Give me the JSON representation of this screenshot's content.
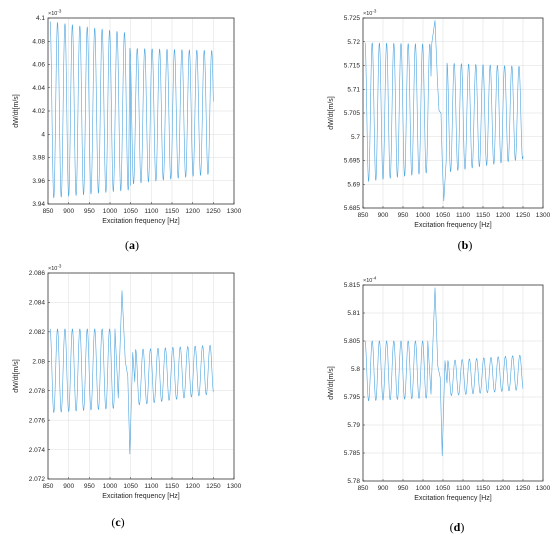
{
  "colors": {
    "series": "#4aa3df",
    "axis": "#262626",
    "grid": "#dcdcdc"
  },
  "chart_data": [
    {
      "id": "a",
      "type": "line",
      "caption_paren_open": "(",
      "caption_letter": "a",
      "caption_paren_close": ")",
      "xlabel": "Excitation frequency [Hz]",
      "ylabel": "dW/dt[m/s]",
      "exponent_base": "×10",
      "exponent_power": "-3",
      "xlim": [
        850,
        1300
      ],
      "ylim": [
        3.94,
        4.1
      ],
      "xticks": [
        "850",
        "900",
        "950",
        "1000",
        "1050",
        "1100",
        "1150",
        "1200",
        "1250",
        "1300"
      ],
      "yticks": [
        "3.94",
        "3.96",
        "3.98",
        "4",
        "4.02",
        "4.04",
        "4.06",
        "4.08",
        "4.1"
      ],
      "grid": true,
      "x_range": [
        855,
        1250
      ],
      "oscillation_period_hz": 18,
      "segments": [
        {
          "x_start": 855,
          "x_end": 1045,
          "max_start": 4.097,
          "max_end": 4.087,
          "min_start": 3.945,
          "min_end": 3.952
        },
        {
          "x_start": 1048,
          "x_end": 1250,
          "max_start": 4.074,
          "max_end": 4.072,
          "min_start": 3.957,
          "min_end": 3.966
        }
      ],
      "features": [
        {
          "x": 1050,
          "y": 3.956
        }
      ]
    },
    {
      "id": "b",
      "type": "line",
      "caption_paren_open": "(",
      "caption_letter": "b",
      "caption_paren_close": ")",
      "xlabel": "Excitation frequency [Hz]",
      "ylabel": "dW/dt[m/s]",
      "exponent_base": "×10",
      "exponent_power": "-3",
      "xlim": [
        850,
        1300
      ],
      "ylim": [
        5.685,
        5.725
      ],
      "xticks": [
        "850",
        "900",
        "950",
        "1000",
        "1050",
        "1100",
        "1150",
        "1200",
        "1250",
        "1300"
      ],
      "yticks": [
        "5.685",
        "5.69",
        "5.695",
        "5.7",
        "5.705",
        "5.71",
        "5.715",
        "5.72",
        "5.725"
      ],
      "grid": true,
      "x_range": [
        855,
        1250
      ],
      "oscillation_period_hz": 18,
      "segments": [
        {
          "x_start": 855,
          "x_end": 1020,
          "max_start": 5.7198,
          "max_end": 5.7195,
          "min_start": 5.6905,
          "min_end": 5.6925
        },
        {
          "x_start": 1060,
          "x_end": 1250,
          "max_start": 5.7155,
          "max_end": 5.7148,
          "min_start": 5.6925,
          "min_end": 5.6953
        }
      ],
      "features": [
        {
          "x": 1022,
          "y": 5.7197
        },
        {
          "x": 1030,
          "y": 5.7245
        },
        {
          "x": 1036,
          "y": 5.712
        },
        {
          "x": 1040,
          "y": 5.7055
        },
        {
          "x": 1045,
          "y": 5.705
        },
        {
          "x": 1048,
          "y": 5.695
        },
        {
          "x": 1052,
          "y": 5.6865
        },
        {
          "x": 1058,
          "y": 5.695
        }
      ]
    },
    {
      "id": "c",
      "type": "line",
      "caption_paren_open": "(",
      "caption_letter": "c",
      "caption_paren_close": ")",
      "xlabel": "Excitation frequency [Hz]",
      "ylabel": "dW/dt[m/s]",
      "exponent_base": "×10",
      "exponent_power": "-3",
      "xlim": [
        850,
        1300
      ],
      "ylim": [
        2.072,
        2.086
      ],
      "xticks": [
        "850",
        "900",
        "950",
        "1000",
        "1050",
        "1100",
        "1150",
        "1200",
        "1250",
        "1300"
      ],
      "yticks": [
        "2.072",
        "2.074",
        "2.076",
        "2.078",
        "2.08",
        "2.082",
        "2.084",
        "2.086"
      ],
      "grid": true,
      "x_range": [
        855,
        1250
      ],
      "oscillation_period_hz": 18,
      "segments": [
        {
          "x_start": 855,
          "x_end": 1010,
          "max_start": 2.0822,
          "max_end": 2.0822,
          "min_start": 2.0765,
          "min_end": 2.0768
        },
        {
          "x_start": 1062,
          "x_end": 1250,
          "max_start": 2.0808,
          "max_end": 2.0811,
          "min_start": 2.077,
          "min_end": 2.0778
        }
      ],
      "features": [
        {
          "x": 1012,
          "y": 2.0822
        },
        {
          "x": 1020,
          "y": 2.0775
        },
        {
          "x": 1029,
          "y": 2.0848
        },
        {
          "x": 1037,
          "y": 2.08
        },
        {
          "x": 1043,
          "y": 2.079
        },
        {
          "x": 1048,
          "y": 2.0737
        },
        {
          "x": 1055,
          "y": 2.0806
        },
        {
          "x": 1060,
          "y": 2.0786
        }
      ]
    },
    {
      "id": "d",
      "type": "line",
      "caption_paren_open": "(",
      "caption_letter": "d",
      "caption_paren_close": ")",
      "xlabel": "Excitation frequency [Hz]",
      "ylabel": "dW/dt[m/s]",
      "exponent_base": "×10",
      "exponent_power": "-4",
      "xlim": [
        850,
        1300
      ],
      "ylim": [
        5.78,
        5.815
      ],
      "xticks": [
        "850",
        "900",
        "950",
        "1000",
        "1050",
        "1100",
        "1150",
        "1200",
        "1250",
        "1300"
      ],
      "yticks": [
        "5.78",
        "5.785",
        "5.79",
        "5.795",
        "5.8",
        "5.805",
        "5.81",
        "5.815"
      ],
      "grid": true,
      "x_range": [
        855,
        1250
      ],
      "oscillation_period_hz": 18,
      "segments": [
        {
          "x_start": 855,
          "x_end": 1010,
          "max_start": 5.805,
          "max_end": 5.805,
          "min_start": 5.7943,
          "min_end": 5.7948
        },
        {
          "x_start": 1062,
          "x_end": 1250,
          "max_start": 5.8015,
          "max_end": 5.8025,
          "min_start": 5.7952,
          "min_end": 5.7963
        }
      ],
      "features": [
        {
          "x": 1012,
          "y": 5.805
        },
        {
          "x": 1020,
          "y": 5.7955
        },
        {
          "x": 1030,
          "y": 5.8145
        },
        {
          "x": 1037,
          "y": 5.8005
        },
        {
          "x": 1043,
          "y": 5.7985
        },
        {
          "x": 1048,
          "y": 5.7845
        },
        {
          "x": 1055,
          "y": 5.8015
        },
        {
          "x": 1060,
          "y": 5.7975
        }
      ]
    }
  ]
}
